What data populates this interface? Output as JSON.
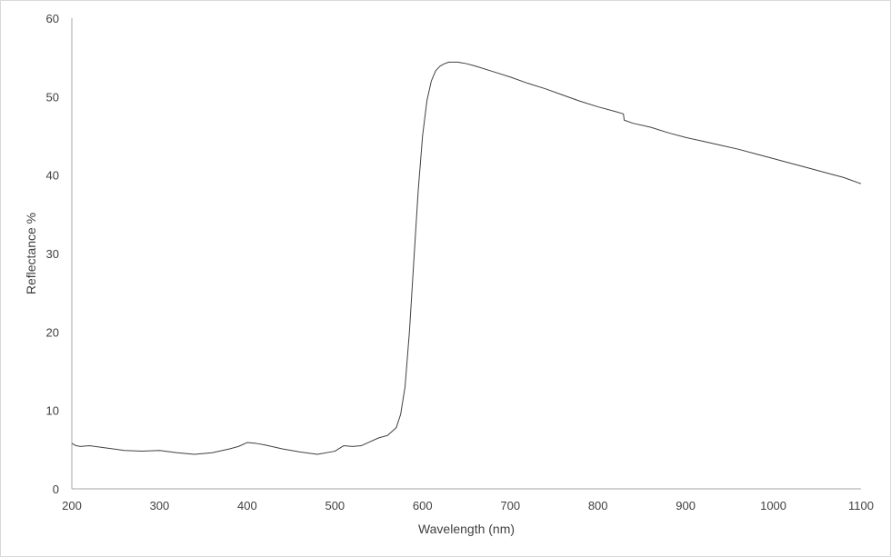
{
  "chart_data": {
    "type": "line",
    "title": "",
    "xlabel": "Wavelength (nm)",
    "ylabel": "Reflectance %",
    "xlim": [
      200,
      1100
    ],
    "ylim": [
      0,
      60
    ],
    "x_ticks": [
      200,
      300,
      400,
      500,
      600,
      700,
      800,
      900,
      1000,
      1100
    ],
    "y_ticks": [
      0,
      10,
      20,
      30,
      40,
      50,
      60
    ],
    "grid": false,
    "legend": "none",
    "line_color": "#404040",
    "axis_color": "#a6a6a6",
    "series": [
      {
        "x": [
          200,
          205,
          210,
          220,
          240,
          260,
          280,
          300,
          320,
          340,
          360,
          380,
          390,
          400,
          410,
          420,
          440,
          460,
          480,
          500,
          510,
          520,
          530,
          540,
          550,
          560,
          570,
          575,
          580,
          585,
          590,
          595,
          600,
          605,
          610,
          615,
          620,
          625,
          630,
          640,
          650,
          660,
          680,
          700,
          720,
          740,
          760,
          780,
          800,
          820,
          829,
          830,
          840,
          860,
          880,
          900,
          920,
          940,
          960,
          980,
          1000,
          1020,
          1040,
          1060,
          1080,
          1100
        ],
        "y": [
          5.8,
          5.5,
          5.4,
          5.5,
          5.2,
          4.9,
          4.8,
          4.9,
          4.6,
          4.4,
          4.6,
          5.1,
          5.4,
          5.9,
          5.8,
          5.6,
          5.1,
          4.7,
          4.4,
          4.8,
          5.5,
          5.4,
          5.5,
          6.0,
          6.5,
          6.8,
          7.8,
          9.5,
          13.0,
          20.0,
          29.0,
          38.0,
          45.0,
          49.5,
          52.0,
          53.3,
          53.9,
          54.2,
          54.4,
          54.4,
          54.2,
          53.9,
          53.2,
          52.5,
          51.7,
          51.0,
          50.2,
          49.4,
          48.7,
          48.1,
          47.8,
          47.0,
          46.6,
          46.1,
          45.4,
          44.8,
          44.3,
          43.8,
          43.3,
          42.7,
          42.1,
          41.5,
          40.9,
          40.3,
          39.7,
          38.9
        ]
      }
    ]
  }
}
